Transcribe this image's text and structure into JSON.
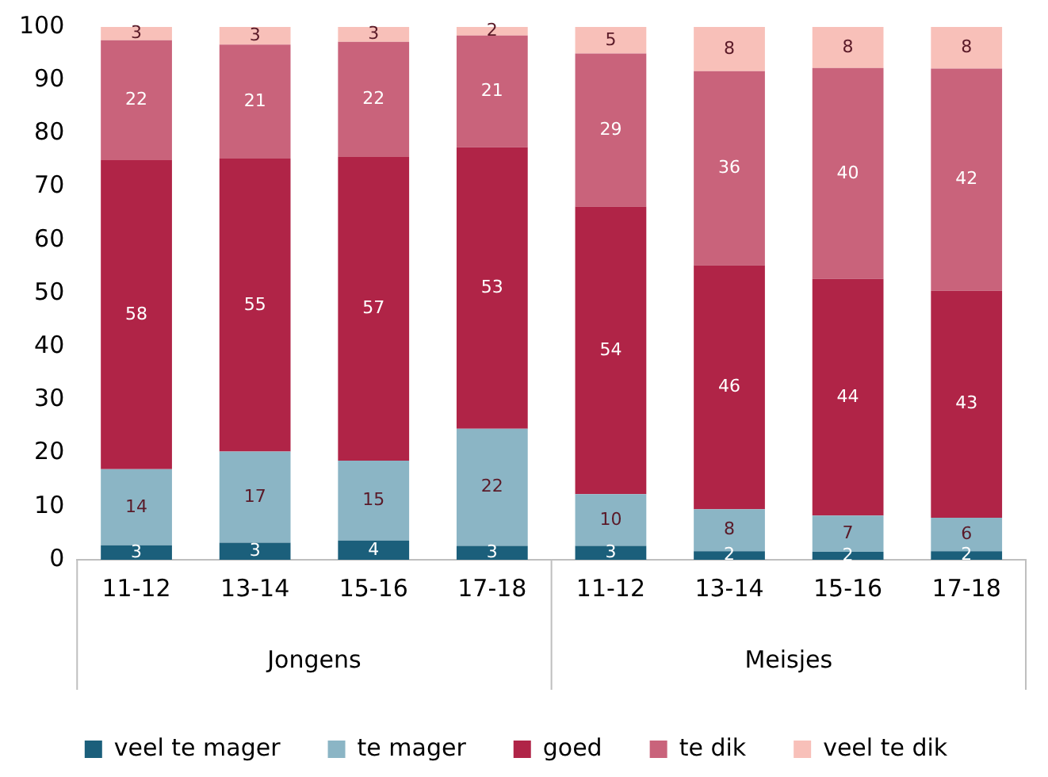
{
  "chart_data": {
    "type": "bar",
    "stacked": true,
    "categories": [
      "11-12",
      "13-14",
      "15-16",
      "17-18",
      "11-12",
      "13-14",
      "15-16",
      "17-18"
    ],
    "series": [
      {
        "name": "veel te mager",
        "color": "#1b5f7b",
        "values": [
          2.7,
          3.2,
          3.6,
          2.6,
          2.6,
          1.6,
          1.5,
          1.6
        ],
        "value_labels": [
          "3",
          "3",
          "4",
          "3",
          "3",
          "2",
          "2",
          "2"
        ]
      },
      {
        "name": "te mager",
        "color": "#8bb5c5",
        "values": [
          14.3,
          17.1,
          15,
          22,
          9.7,
          7.9,
          6.8,
          6.3
        ],
        "value_labels": [
          "14",
          "17",
          "15",
          "22",
          "10",
          "8",
          "7",
          "6"
        ]
      },
      {
        "name": "goed",
        "color": "#b02447",
        "values": [
          58,
          55,
          57,
          52.8,
          54,
          45.8,
          44.4,
          42.6
        ],
        "value_labels": [
          "58",
          "55",
          "57",
          "53",
          "54",
          "46",
          "44",
          "43"
        ]
      },
      {
        "name": "te dik",
        "color": "#c9637b",
        "values": [
          22.5,
          21.4,
          21.6,
          21,
          28.7,
          36.4,
          39.6,
          41.7
        ],
        "value_labels": [
          "22",
          "21",
          "22",
          "21",
          "29",
          "36",
          "40",
          "42"
        ]
      },
      {
        "name": "veel te dik",
        "color": "#f8c0b9",
        "values": [
          2.5,
          3.3,
          2.8,
          1.6,
          5,
          8.3,
          7.7,
          7.8
        ],
        "value_labels": [
          "3",
          "3",
          "3",
          "2",
          "5",
          "8",
          "8",
          "8"
        ]
      }
    ],
    "ylim": [
      0,
      100
    ],
    "yticks": [
      0,
      10,
      20,
      30,
      40,
      50,
      60,
      70,
      80,
      90,
      100
    ],
    "grid": false,
    "legend": "bottom",
    "annotations": [
      "Jongens",
      "Meisjes"
    ]
  }
}
